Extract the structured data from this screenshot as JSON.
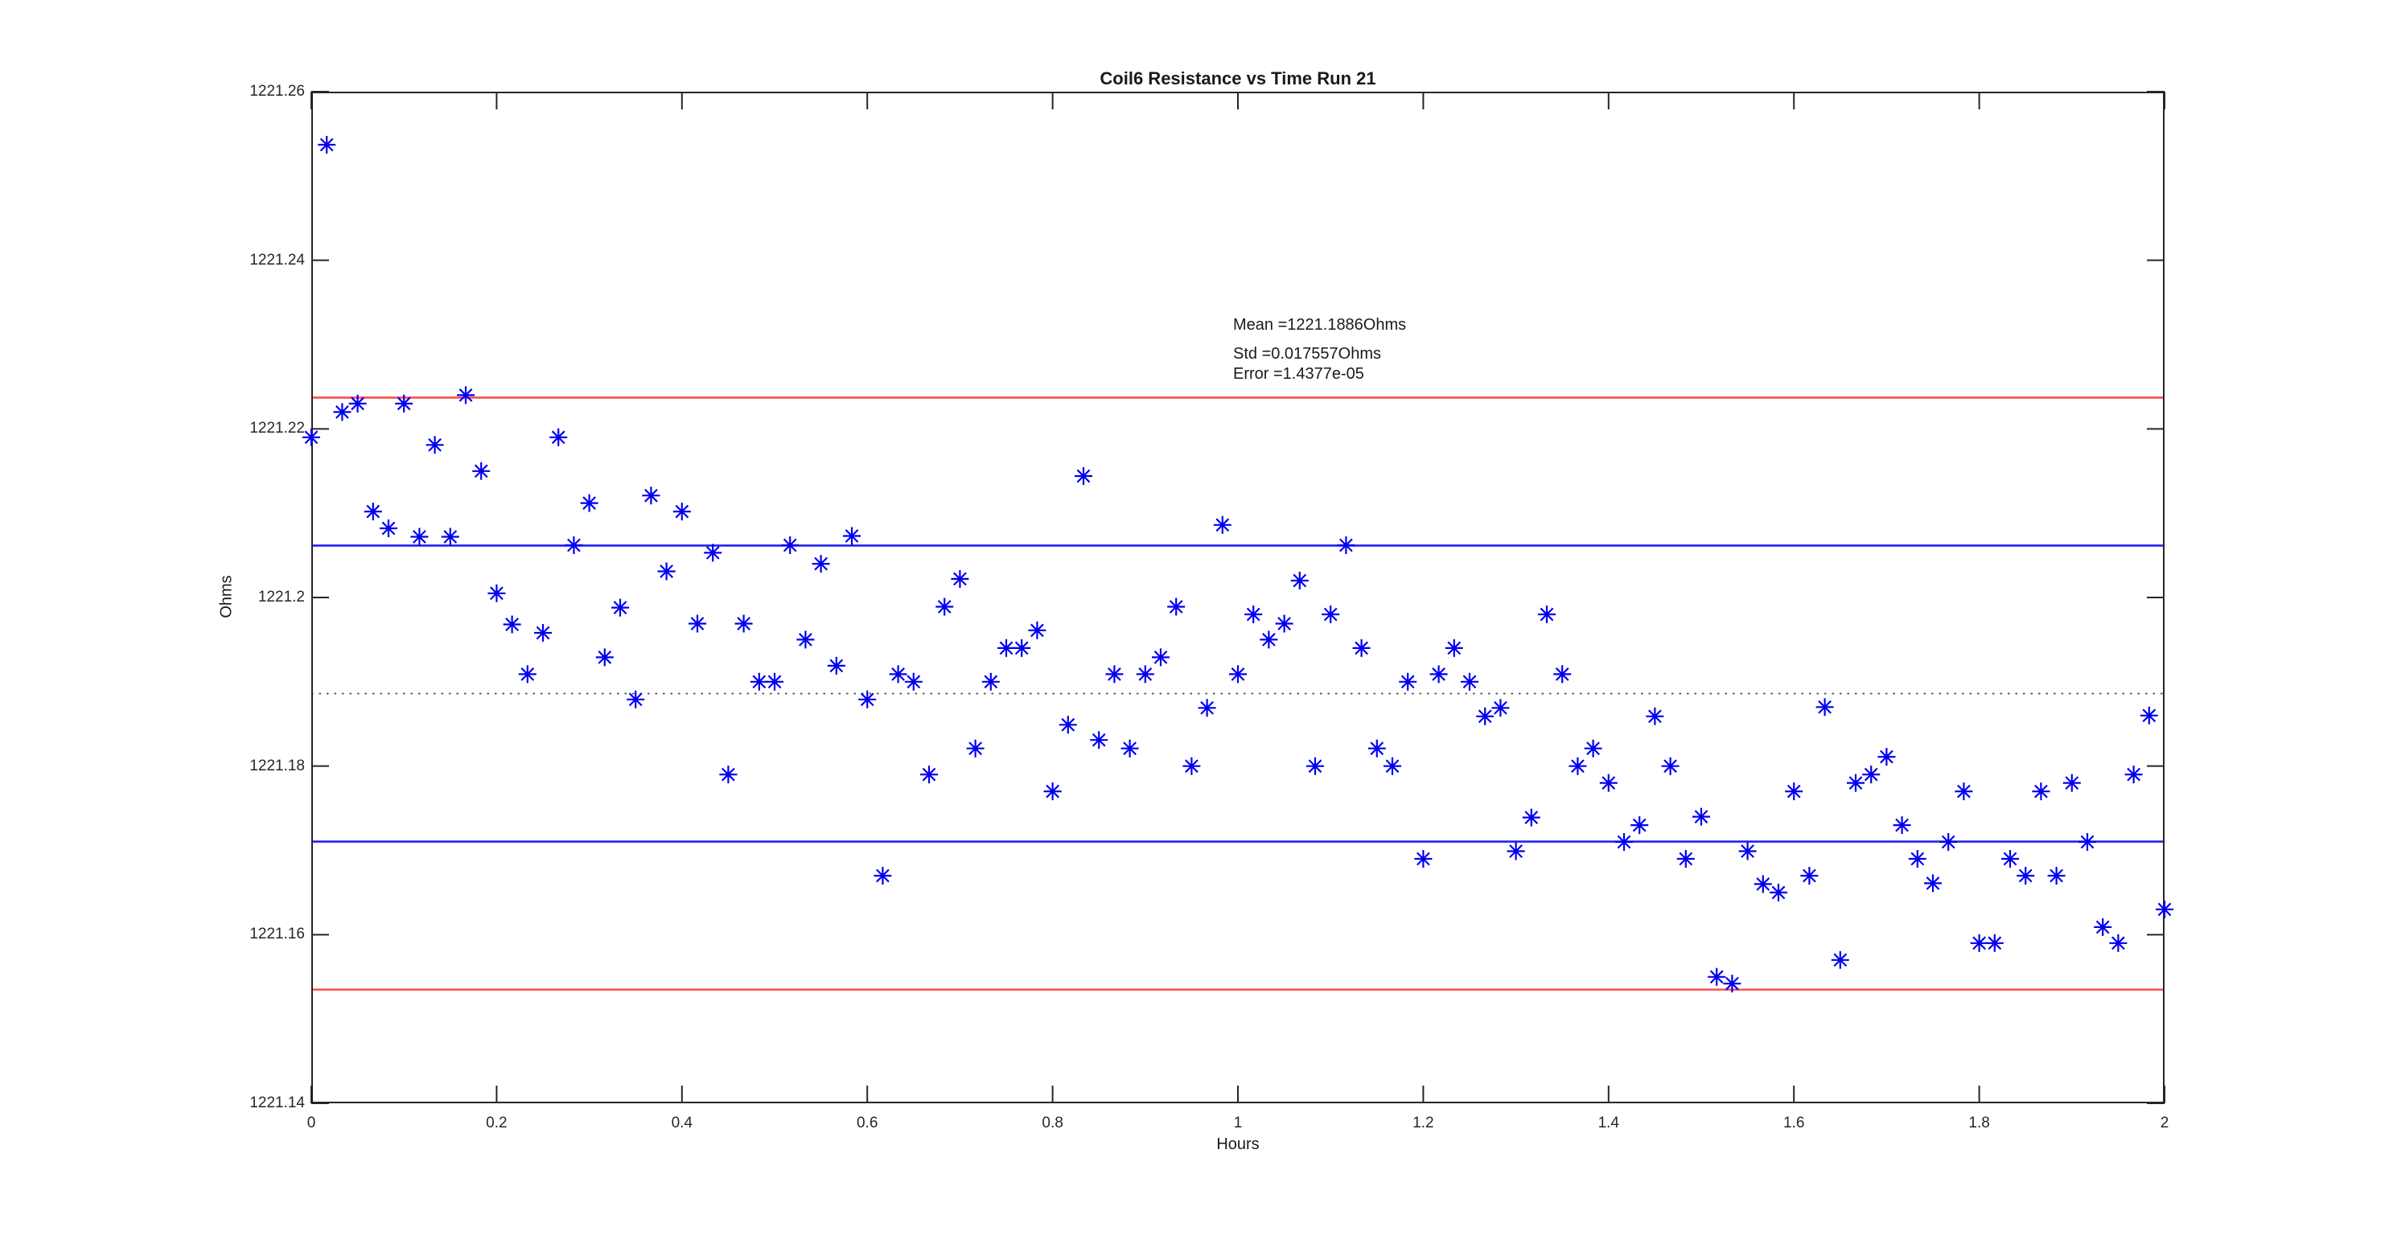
{
  "figure": {
    "background": "#ffffff",
    "text_color": "#1a1a1a"
  },
  "chart_data": {
    "type": "scatter",
    "title": "Coil6 Resistance vs Time Run 21",
    "xlabel": "Hours",
    "ylabel": "Ohms",
    "xlim": [
      0,
      2
    ],
    "ylim": [
      1221.14,
      1221.26
    ],
    "grid": false,
    "legend": "none",
    "marker": "asterisk",
    "marker_color": "#0000f0",
    "axis_color": "#262626",
    "x_tick_values": [
      0,
      0.2,
      0.4,
      0.6,
      0.8,
      1,
      1.2,
      1.4,
      1.6,
      1.8,
      2
    ],
    "x_tick_labels": [
      "0",
      "0.2",
      "0.4",
      "0.6",
      "0.8",
      "1",
      "1.2",
      "1.4",
      "1.6",
      "1.8",
      "2"
    ],
    "y_tick_values": [
      1221.26,
      1221.24,
      1221.22,
      1221.2,
      1221.18,
      1221.16,
      1221.14
    ],
    "y_tick_labels": [
      "1221.26",
      "1221.24",
      "1221.22",
      "1221.2",
      "1221.18",
      "1221.16",
      "1221.14"
    ],
    "series": [
      {
        "name": "Coil6 resistance",
        "x": [
          0,
          0.0167,
          0.0333,
          0.05,
          0.0667,
          0.0833,
          0.1,
          0.1167,
          0.1333,
          0.15,
          0.1667,
          0.1833,
          0.2,
          0.2167,
          0.2333,
          0.25,
          0.2667,
          0.2833,
          0.3,
          0.3167,
          0.3333,
          0.35,
          0.3667,
          0.3833,
          0.4,
          0.4167,
          0.4333,
          0.45,
          0.4667,
          0.4833,
          0.5,
          0.5167,
          0.5333,
          0.55,
          0.5667,
          0.5833,
          0.6,
          0.6167,
          0.6333,
          0.65,
          0.6667,
          0.6833,
          0.7,
          0.7167,
          0.7333,
          0.75,
          0.7667,
          0.7833,
          0.8,
          0.8167,
          0.8333,
          0.85,
          0.8667,
          0.8833,
          0.9,
          0.9167,
          0.9333,
          0.95,
          0.9667,
          0.9833,
          1,
          1.0167,
          1.0333,
          1.05,
          1.0667,
          1.0833,
          1.1,
          1.1167,
          1.1333,
          1.15,
          1.1667,
          1.1833,
          1.2,
          1.2167,
          1.2333,
          1.25,
          1.2667,
          1.2833,
          1.3,
          1.3167,
          1.3333,
          1.35,
          1.3667,
          1.3833,
          1.4,
          1.4167,
          1.4333,
          1.45,
          1.4667,
          1.4833,
          1.5,
          1.5167,
          1.5333,
          1.55,
          1.5667,
          1.5833,
          1.6,
          1.6167,
          1.6333,
          1.65,
          1.6667,
          1.6833,
          1.7,
          1.7167,
          1.7333,
          1.75,
          1.7667,
          1.7833,
          1.8,
          1.8167,
          1.8333,
          1.85,
          1.8667,
          1.8833,
          1.9,
          1.9167,
          1.9333,
          1.95,
          1.9667,
          1.9833,
          2
        ],
        "y": [
          1221.219,
          1221.2537,
          1221.222,
          1221.223,
          1221.2102,
          1221.2082,
          1221.223,
          1221.2072,
          1221.2181,
          1221.2072,
          1221.224,
          1221.215,
          1221.2005,
          1221.1968,
          1221.1909,
          1221.1958,
          1221.219,
          1221.2062,
          1221.2112,
          1221.1929,
          1221.1988,
          1221.1879,
          1221.2121,
          1221.2031,
          1221.2102,
          1221.1969,
          1221.2053,
          1221.179,
          1221.1969,
          1221.19,
          1221.19,
          1221.2062,
          1221.195,
          1221.204,
          1221.1919,
          1221.2073,
          1221.1879,
          1221.167,
          1221.1909,
          1221.19,
          1221.179,
          1221.1989,
          1221.2022,
          1221.1821,
          1221.19,
          1221.194,
          1221.194,
          1221.1961,
          1221.177,
          1221.1849,
          1221.2144,
          1221.1831,
          1221.1909,
          1221.1821,
          1221.1909,
          1221.1929,
          1221.1989,
          1221.18,
          1221.1869,
          1221.2086,
          1221.1909,
          1221.198,
          1221.195,
          1221.1969,
          1221.202,
          1221.18,
          1221.198,
          1221.2062,
          1221.194,
          1221.1821,
          1221.18,
          1221.19,
          1221.169,
          1221.1909,
          1221.194,
          1221.19,
          1221.1859,
          1221.1869,
          1221.1699,
          1221.1739,
          1221.198,
          1221.1909,
          1221.18,
          1221.1821,
          1221.178,
          1221.171,
          1221.173,
          1221.1859,
          1221.18,
          1221.169,
          1221.174,
          1221.155,
          1221.1542,
          1221.1699,
          1221.166,
          1221.165,
          1221.177,
          1221.167,
          1221.187,
          1221.157,
          1221.178,
          1221.179,
          1221.1811,
          1221.173,
          1221.169,
          1221.1661,
          1221.171,
          1221.177,
          1221.159,
          1221.159,
          1221.169,
          1221.167,
          1221.177,
          1221.167,
          1221.178,
          1221.171,
          1221.1609,
          1221.159,
          1221.179,
          1221.186,
          1221.163
        ]
      }
    ],
    "reference_lines": [
      {
        "name": "mean-plus-2std",
        "value": 1221.223714,
        "color": "#f94f4f",
        "style": "solid"
      },
      {
        "name": "mean-plus-1std",
        "value": 1221.206157,
        "color": "#2222f0",
        "style": "solid"
      },
      {
        "name": "mean",
        "value": 1221.1886,
        "color": "#4a4a4a",
        "style": "dotted"
      },
      {
        "name": "mean-minus-1std",
        "value": 1221.171043,
        "color": "#2222f0",
        "style": "solid"
      },
      {
        "name": "mean-minus-2std",
        "value": 1221.153486,
        "color": "#f94f4f",
        "style": "solid"
      }
    ],
    "annotation": {
      "lines": [
        "Mean =1221.1886Ohms",
        "Std =0.017557Ohms",
        "Error =1.4377e-05"
      ]
    },
    "stats": {
      "mean_ohms": 1221.1886,
      "std_ohms": 0.017557,
      "error": 1.4377e-05
    }
  }
}
